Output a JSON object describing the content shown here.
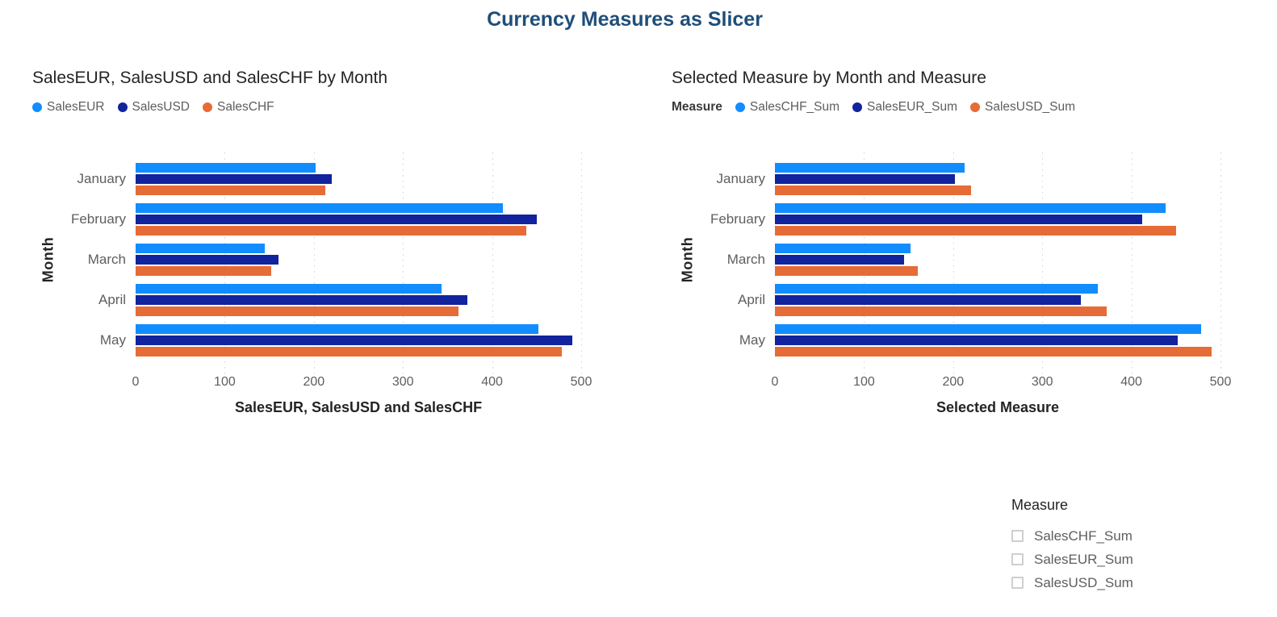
{
  "page_title": "Currency Measures as Slicer",
  "colors": {
    "title": "#1F4E79",
    "series_blue": "#118DFF",
    "series_navy": "#12239E",
    "series_orange": "#E66C37",
    "axis_text": "#605E5C",
    "chart_text": "#252423",
    "gridline": "#D2D2D2"
  },
  "chart_data": [
    {
      "type": "bar",
      "orientation": "horizontal",
      "title": "SalesEUR, SalesUSD and SalesCHF by Month",
      "legend_title": "",
      "legend_position": "top",
      "grid": "dotted-vertical",
      "categories": [
        "January",
        "February",
        "March",
        "April",
        "May"
      ],
      "series": [
        {
          "name": "SalesEUR",
          "color_key": "series_blue",
          "values": [
            202,
            412,
            145,
            343,
            452
          ]
        },
        {
          "name": "SalesUSD",
          "color_key": "series_navy",
          "values": [
            220,
            450,
            160,
            372,
            490
          ]
        },
        {
          "name": "SalesCHF",
          "color_key": "series_orange",
          "values": [
            213,
            438,
            152,
            362,
            478
          ]
        }
      ],
      "xlabel": "SalesEUR, SalesUSD and SalesCHF",
      "ylabel": "Month",
      "xlim": [
        0,
        500
      ],
      "xticks": [
        0,
        100,
        200,
        300,
        400,
        500
      ]
    },
    {
      "type": "bar",
      "orientation": "horizontal",
      "title": "Selected Measure by Month and Measure",
      "legend_title": "Measure",
      "legend_position": "top",
      "grid": "dotted-vertical",
      "categories": [
        "January",
        "February",
        "March",
        "April",
        "May"
      ],
      "series": [
        {
          "name": "SalesCHF_Sum",
          "color_key": "series_blue",
          "values": [
            213,
            438,
            152,
            362,
            478
          ]
        },
        {
          "name": "SalesEUR_Sum",
          "color_key": "series_navy",
          "values": [
            202,
            412,
            145,
            343,
            452
          ]
        },
        {
          "name": "SalesUSD_Sum",
          "color_key": "series_orange",
          "values": [
            220,
            450,
            160,
            372,
            490
          ]
        }
      ],
      "xlabel": "Selected Measure",
      "ylabel": "Month",
      "xlim": [
        0,
        500
      ],
      "xticks": [
        0,
        100,
        200,
        300,
        400,
        500
      ]
    }
  ],
  "slicer": {
    "title": "Measure",
    "options": [
      {
        "label": "SalesCHF_Sum",
        "checked": false
      },
      {
        "label": "SalesEUR_Sum",
        "checked": false
      },
      {
        "label": "SalesUSD_Sum",
        "checked": false
      }
    ]
  }
}
